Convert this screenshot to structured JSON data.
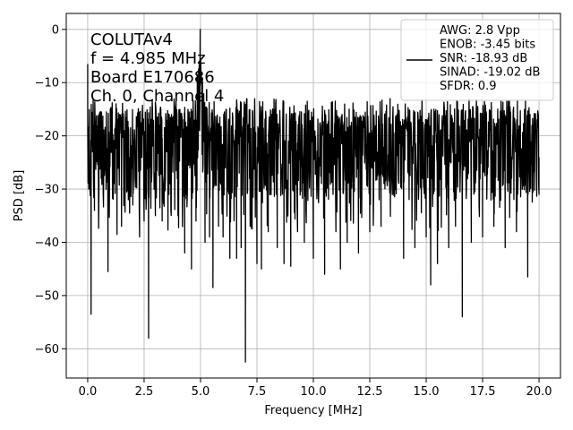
{
  "chart_data": {
    "type": "line",
    "xlabel": "Frequency [MHz]",
    "ylabel": "PSD [dB]",
    "xlim": [
      -0.95,
      20.95
    ],
    "ylim": [
      -65.5,
      3.0
    ],
    "xticks": [
      0.0,
      2.5,
      5.0,
      7.5,
      10.0,
      12.5,
      15.0,
      17.5,
      20.0
    ],
    "xtick_labels": [
      "0.0",
      "2.5",
      "5.0",
      "7.5",
      "10.0",
      "12.5",
      "15.0",
      "17.5",
      "20.0"
    ],
    "yticks": [
      0,
      -10,
      -20,
      -30,
      -40,
      -50,
      -60
    ],
    "ytick_labels": [
      "0",
      "−10",
      "−20",
      "−30",
      "−40",
      "−50",
      "−60"
    ],
    "grid": true,
    "legend_position": "top-right",
    "series_color": "#000000",
    "annotation_lines": [
      "COLUTAv4",
      "f = 4.985 MHz",
      "Board E170686",
      "Ch. 0, Channel 4"
    ],
    "legend_lines": [
      "AWG: 2.8 Vpp",
      "ENOB: -3.45 bits",
      "SNR: -18.93 dB",
      "SINAD: -19.02 dB",
      "SFDR: 0.9"
    ],
    "series": [
      {
        "x": [
          0.0,
          0.05,
          0.15,
          0.25,
          0.3,
          0.5,
          0.7,
          0.9,
          1.0,
          1.3,
          1.5,
          1.8,
          2.0,
          2.3,
          2.5,
          2.7,
          3.0,
          3.3,
          3.6,
          4.0,
          4.3,
          4.6,
          4.8,
          4.985,
          5.2,
          5.4,
          5.55,
          5.8,
          6.0,
          6.3,
          6.6,
          6.8,
          6.99,
          7.2,
          7.5,
          7.7,
          8.0,
          8.4,
          8.7,
          9.0,
          9.3,
          9.6,
          10.0,
          10.5,
          11.0,
          11.2,
          11.5,
          12.0,
          12.5,
          13.0,
          13.4,
          14.0,
          14.5,
          15.0,
          15.2,
          15.5,
          16.0,
          16.3,
          16.6,
          17.0,
          17.5,
          18.0,
          18.5,
          19.0,
          19.5,
          20.0
        ],
        "values": [
          -6.5,
          -30.0,
          -53.5,
          -20.0,
          -34.0,
          -30.0,
          -33.0,
          -45.5,
          -20.0,
          -38.5,
          -37.0,
          -32.0,
          -33.0,
          -39.0,
          -36.0,
          -58.0,
          -35.0,
          -36.0,
          -31.0,
          -35.0,
          -42.0,
          -45.0,
          -36.0,
          0.0,
          -40.0,
          -39.0,
          -48.5,
          -37.0,
          -39.0,
          -43.0,
          -43.0,
          -41.0,
          -62.5,
          -37.0,
          -44.0,
          -45.0,
          -38.0,
          -41.0,
          -44.0,
          -44.5,
          -38.0,
          -40.0,
          -43.0,
          -46.0,
          -38.0,
          -45.0,
          -40.0,
          -42.0,
          -38.0,
          -37.0,
          -13.0,
          -43.0,
          -41.0,
          -39.0,
          -48.0,
          -44.0,
          -41.0,
          -37.0,
          -54.0,
          -40.0,
          -39.0,
          -37.0,
          -41.0,
          -38.0,
          -46.5,
          -31.0
        ]
      }
    ]
  }
}
